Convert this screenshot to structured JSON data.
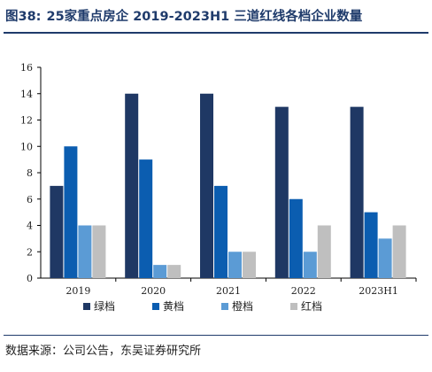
{
  "figure": {
    "label": "图38:",
    "title": "25家重点房企 2019-2023H1 三道红线各档企业数量",
    "source": "数据来源：公司公告，东吴证券研究所"
  },
  "chart_data": {
    "type": "bar",
    "categories": [
      "2019",
      "2020",
      "2021",
      "2022",
      "2023H1"
    ],
    "series": [
      {
        "name": "绿档",
        "color": "#1f3864",
        "values": [
          7,
          14,
          14,
          13,
          13
        ]
      },
      {
        "name": "黄档",
        "color": "#0b5db0",
        "values": [
          10,
          9,
          7,
          6,
          5
        ]
      },
      {
        "name": "橙档",
        "color": "#5b9bd5",
        "values": [
          4,
          1,
          2,
          2,
          3
        ]
      },
      {
        "name": "红档",
        "color": "#bfbfbf",
        "values": [
          4,
          1,
          2,
          4,
          4
        ]
      }
    ],
    "ylim": [
      0,
      16
    ],
    "yticks": [
      0,
      2,
      4,
      6,
      8,
      10,
      12,
      14,
      16
    ],
    "grid": false,
    "legend_position": "bottom"
  }
}
